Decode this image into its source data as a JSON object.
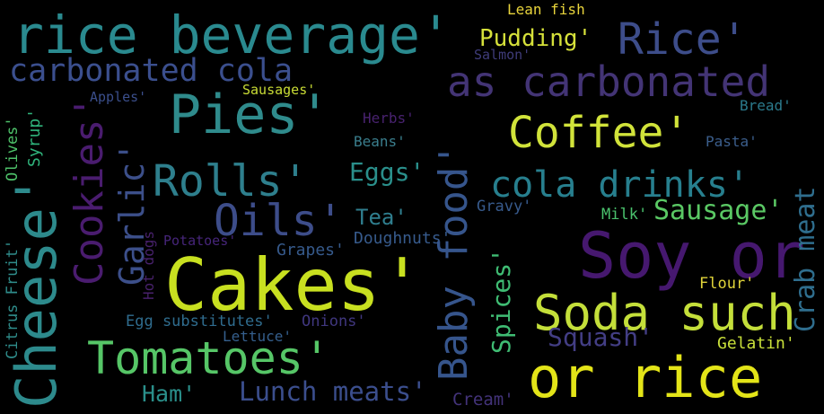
{
  "words": [
    {
      "text": "rice beverage'",
      "color": "#2a8a8f"
    },
    {
      "text": "Lean fish",
      "color": "#e8d43c"
    },
    {
      "text": "Pudding'",
      "color": "#d6e13a"
    },
    {
      "text": "Rice'",
      "color": "#3d4d8a"
    },
    {
      "text": "carbonated cola",
      "color": "#3b4f8e"
    },
    {
      "text": "Salmon'",
      "color": "#3f3c7a"
    },
    {
      "text": "as carbonated",
      "color": "#433475"
    },
    {
      "text": "Sausages'",
      "color": "#c9dc35"
    },
    {
      "text": "Apples'",
      "color": "#3b4f8c"
    },
    {
      "text": "Pies'",
      "color": "#2f8b8c"
    },
    {
      "text": "Bread'",
      "color": "#2b7a8c"
    },
    {
      "text": "Herbs'",
      "color": "#48226f"
    },
    {
      "text": "Coffee'",
      "color": "#d1e33a"
    },
    {
      "text": "Beans'",
      "color": "#3a7e8d"
    },
    {
      "text": "Pasta'",
      "color": "#3b5e8c"
    },
    {
      "text": "Rolls'",
      "color": "#2e7f8d"
    },
    {
      "text": "Eggs'",
      "color": "#2a8f8b"
    },
    {
      "text": "cola drinks'",
      "color": "#277f8e"
    },
    {
      "text": "Oils'",
      "color": "#3d4d8a"
    },
    {
      "text": "Tea'",
      "color": "#2f7e8e"
    },
    {
      "text": "Gravy'",
      "color": "#375a8c"
    },
    {
      "text": "Milk'",
      "color": "#4ac16d"
    },
    {
      "text": "Sausage'",
      "color": "#5ac864"
    },
    {
      "text": "Potatoes'",
      "color": "#46257a"
    },
    {
      "text": "Doughnuts'",
      "color": "#375b8d"
    },
    {
      "text": "Soy or",
      "color": "#46186f"
    },
    {
      "text": "Grapes'",
      "color": "#365a8c"
    },
    {
      "text": "Cakes'",
      "color": "#c8e020"
    },
    {
      "text": "Soda such",
      "color": "#c4df3a"
    },
    {
      "text": "Flour'",
      "color": "#e0d43a"
    },
    {
      "text": "Egg substitutes'",
      "color": "#2f6c8e"
    },
    {
      "text": "Onions'",
      "color": "#40377f"
    },
    {
      "text": "Lettuce'",
      "color": "#355f8d"
    },
    {
      "text": "Squash'",
      "color": "#433e85"
    },
    {
      "text": "Gelatin'",
      "color": "#c9e03a"
    },
    {
      "text": "Tomatoes'",
      "color": "#56c667"
    },
    {
      "text": "Ham'",
      "color": "#2a8f8a"
    },
    {
      "text": "Lunch meats'",
      "color": "#3b4e8d"
    },
    {
      "text": "Cream'",
      "color": "#43337a"
    },
    {
      "text": "or rice",
      "color": "#e3e418"
    },
    {
      "text": "Cheese'",
      "color": "#2d8a8c"
    },
    {
      "text": "Cookies'",
      "color": "#4a1c6f"
    },
    {
      "text": "Garlic'",
      "color": "#3c4f8a"
    },
    {
      "text": "Baby food'",
      "color": "#36558c"
    },
    {
      "text": "Spices'",
      "color": "#3fbc73"
    },
    {
      "text": "Hot dogs",
      "color": "#48216c"
    },
    {
      "text": "Syrup'",
      "color": "#2fb47c"
    },
    {
      "text": "Olives'",
      "color": "#4ec26a"
    },
    {
      "text": "Citrus Fruit'",
      "color": "#2f8d8b"
    },
    {
      "text": "Crab meat",
      "color": "#2f6e8e"
    }
  ]
}
